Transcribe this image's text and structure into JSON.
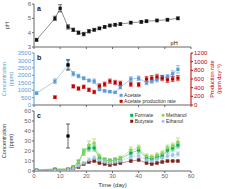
{
  "chart_data": [
    {
      "type": "line",
      "title": "a",
      "annotation": "pH",
      "ylabel": "pH",
      "x": [
        1,
        8,
        10,
        13,
        15,
        17,
        19,
        21,
        23,
        25,
        27,
        29,
        31,
        33,
        37,
        41,
        43,
        47,
        51,
        55
      ],
      "values": [
        3.5,
        5.0,
        5.7,
        4.4,
        4.2,
        4.0,
        3.9,
        4.1,
        4.2,
        4.3,
        4.4,
        4.5,
        4.55,
        4.6,
        4.7,
        4.75,
        4.8,
        4.85,
        4.9,
        5.0
      ],
      "error": [
        0.1,
        0.15,
        0.25,
        0.15,
        0.12,
        0.12,
        0.12,
        0.12,
        0.1,
        0.1,
        0.1,
        0.1,
        0.1,
        0.1,
        0.1,
        0.1,
        0.1,
        0.1,
        0.1,
        0.1
      ],
      "color": "#111111",
      "marker": "square",
      "xlim": [
        0,
        60
      ],
      "xticks": [
        0,
        10,
        20,
        30,
        40,
        50,
        60
      ],
      "ylim": [
        3,
        6
      ],
      "yticks": [
        3,
        4,
        5,
        6
      ],
      "tick_labels": "y"
    },
    {
      "type": "line",
      "title": "b",
      "ylabel": "Concentration\n(ppm)",
      "y2label": "Production rate\n(ppm day⁻¹)",
      "xlim": [
        0,
        60
      ],
      "xticks": [
        0,
        10,
        20,
        30,
        40,
        50,
        60
      ],
      "ylim": [
        0,
        3500
      ],
      "yticks": [
        0,
        500,
        1000,
        1500,
        2000,
        2500,
        3000,
        3500
      ],
      "y2lim": [
        0,
        1200
      ],
      "y2ticks": [
        0,
        200,
        400,
        600,
        800,
        1000,
        1200
      ],
      "tick_labels": "y",
      "legend": "lower right",
      "series": [
        {
          "name": "Acetate",
          "type": "line",
          "color": "#5b9bd5",
          "marker": "square",
          "x": [
            1,
            8,
            13,
            15,
            17,
            19,
            21,
            23,
            25,
            27,
            29,
            31,
            33,
            37,
            40,
            43,
            45,
            47,
            49,
            51,
            53,
            55
          ],
          "values": [
            800,
            1600,
            2700,
            2100,
            1950,
            1800,
            1650,
            1600,
            1050,
            950,
            900,
            850,
            1200,
            1750,
            1800,
            1500,
            1600,
            1700,
            1850,
            1900,
            2100,
            2400
          ],
          "error": [
            80,
            160,
            300,
            150,
            120,
            100,
            100,
            150,
            100,
            80,
            80,
            80,
            120,
            150,
            150,
            130,
            130,
            150,
            150,
            150,
            200,
            250
          ]
        },
        {
          "name": "Acetate production rate",
          "type": "scatter",
          "axis": "y2",
          "color": "#c00000",
          "marker": "square",
          "x": [
            8,
            15,
            17,
            19,
            21,
            23,
            25,
            27,
            29,
            31,
            33,
            37,
            40,
            43,
            45,
            47,
            49,
            51,
            53,
            55
          ],
          "values": [
            180,
            430,
            380,
            420,
            350,
            300,
            440,
            480,
            550,
            520,
            500,
            480,
            470,
            600,
            620,
            650,
            620,
            580,
            600,
            620
          ],
          "error": [
            30,
            40,
            40,
            40,
            40,
            40,
            50,
            50,
            50,
            50,
            50,
            50,
            50,
            60,
            60,
            60,
            60,
            60,
            60,
            60
          ]
        },
        {
          "type": "scatter",
          "color": "#000000",
          "marker": "square",
          "x": [
            13
          ],
          "values": [
            2700
          ],
          "error": [
            350
          ]
        }
      ]
    },
    {
      "type": "line",
      "title": "c",
      "ylabel": "Concentration\n(ppm)",
      "xlabel": "Time (day)",
      "xlim": [
        0,
        60
      ],
      "xticks": [
        0,
        10,
        20,
        30,
        40,
        50,
        60
      ],
      "ylim": [
        0,
        60
      ],
      "yticks": [
        0,
        10,
        20,
        30,
        40,
        50,
        60
      ],
      "legend": "upper right",
      "x": [
        1,
        8,
        13,
        15,
        17,
        19,
        21,
        23,
        25,
        27,
        29,
        31,
        33,
        37,
        40,
        43,
        45,
        47,
        49,
        51,
        53,
        55
      ],
      "series": [
        {
          "name": "Formate",
          "type": "line",
          "color": "#00b050",
          "marker": "square",
          "values": [
            1,
            2,
            2,
            4,
            9,
            19,
            23,
            23,
            13,
            11,
            10,
            11,
            12,
            18,
            21,
            13,
            12,
            14,
            15,
            21,
            23,
            26
          ],
          "error": [
            0.3,
            0.5,
            0.5,
            1.0,
            2,
            3,
            3,
            3,
            2,
            2,
            2,
            2,
            2,
            3,
            3,
            2,
            2,
            2,
            2,
            3,
            3,
            3
          ]
        },
        {
          "name": "Methanol",
          "type": "line",
          "color": "#92d050",
          "marker": "circle",
          "values": [
            1,
            2,
            2,
            4,
            9,
            19,
            26,
            28,
            15,
            11,
            10,
            11,
            13,
            21,
            23,
            15,
            14,
            16,
            18,
            23,
            25,
            29
          ],
          "error": [
            0.3,
            0.5,
            0.5,
            1.0,
            2,
            3,
            4,
            4,
            2,
            2,
            2,
            2,
            2,
            3,
            3,
            2,
            2,
            2,
            2,
            3,
            3,
            4
          ]
        },
        {
          "name": "Butyrate",
          "type": "line",
          "color": "#7b2217",
          "marker": "square",
          "values": [
            0.5,
            1,
            1.5,
            2.5,
            4,
            7,
            9,
            10,
            8,
            7,
            6,
            7,
            8,
            10,
            11,
            8,
            7,
            8,
            9,
            10,
            10,
            10
          ],
          "error": [
            0.2,
            0.3,
            0.4,
            0.6,
            1,
            1,
            1,
            1,
            1,
            1,
            1,
            1,
            1,
            1,
            1,
            1,
            1,
            1,
            1,
            1,
            1,
            1
          ]
        },
        {
          "name": "Ethanol",
          "type": "line",
          "color": "#9dc3e6",
          "marker": "circle",
          "values": [
            0.5,
            1,
            1.5,
            2.5,
            5,
            8,
            11,
            13,
            11,
            9,
            8,
            9,
            10,
            14,
            15,
            11,
            10,
            12,
            13,
            15,
            16,
            17
          ],
          "error": [
            0.2,
            0.3,
            0.4,
            0.6,
            1,
            1,
            2,
            2,
            2,
            1,
            1,
            1,
            1,
            2,
            2,
            2,
            2,
            2,
            2,
            2,
            2,
            2
          ]
        },
        {
          "type": "scatter",
          "color": "#000000",
          "marker": "square",
          "x": [
            13
          ],
          "values": [
            35
          ],
          "error": [
            12
          ]
        }
      ]
    }
  ]
}
